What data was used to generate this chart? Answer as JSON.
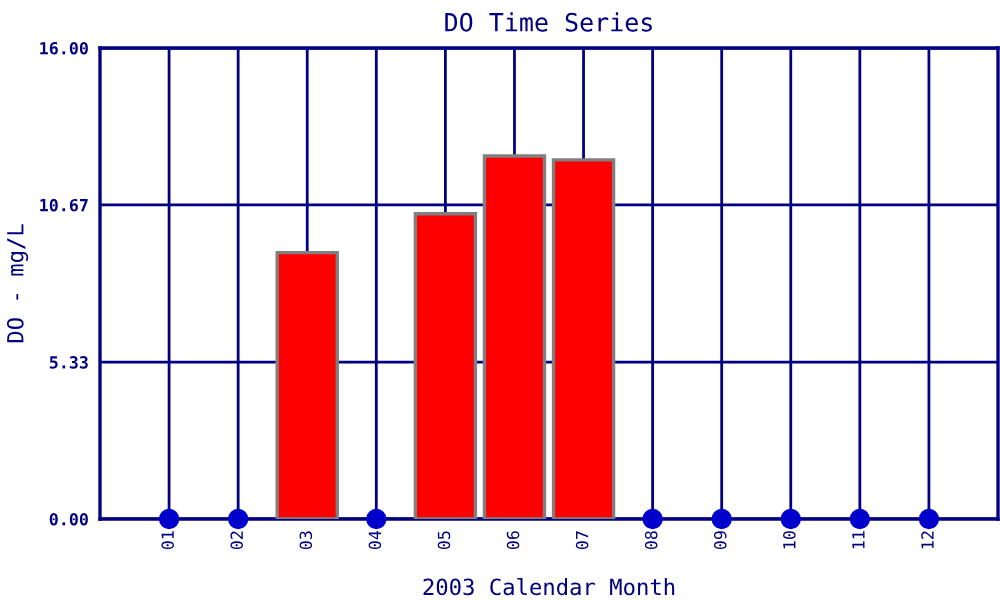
{
  "chart_data": {
    "type": "bar",
    "title": "DO Time Series",
    "xlabel": "2003 Calendar Month",
    "ylabel": "DO - mg/L",
    "categories": [
      "01",
      "02",
      "03",
      "04",
      "05",
      "06",
      "07",
      "08",
      "09",
      "10",
      "11",
      "12"
    ],
    "series": [
      {
        "color": "#ff0000",
        "values": [
          null,
          null,
          9.05,
          null,
          10.37,
          12.33,
          12.2,
          null,
          null,
          null,
          null,
          null
        ]
      },
      {
        "type": "scatter",
        "color": "#0000cc",
        "x": [
          "01",
          "02",
          "04",
          "08",
          "09",
          "10",
          "11",
          "12"
        ],
        "values": [
          0,
          0,
          0,
          0,
          0,
          0,
          0,
          0
        ]
      }
    ],
    "ylim": [
      0,
      16
    ],
    "yticks": [
      {
        "value": 0,
        "label": "0.00"
      },
      {
        "value": 5.33,
        "label": "5.33"
      },
      {
        "value": 10.67,
        "label": "10.67"
      },
      {
        "value": 16,
        "label": "16.00"
      }
    ],
    "grid": true,
    "marker": "circle"
  }
}
